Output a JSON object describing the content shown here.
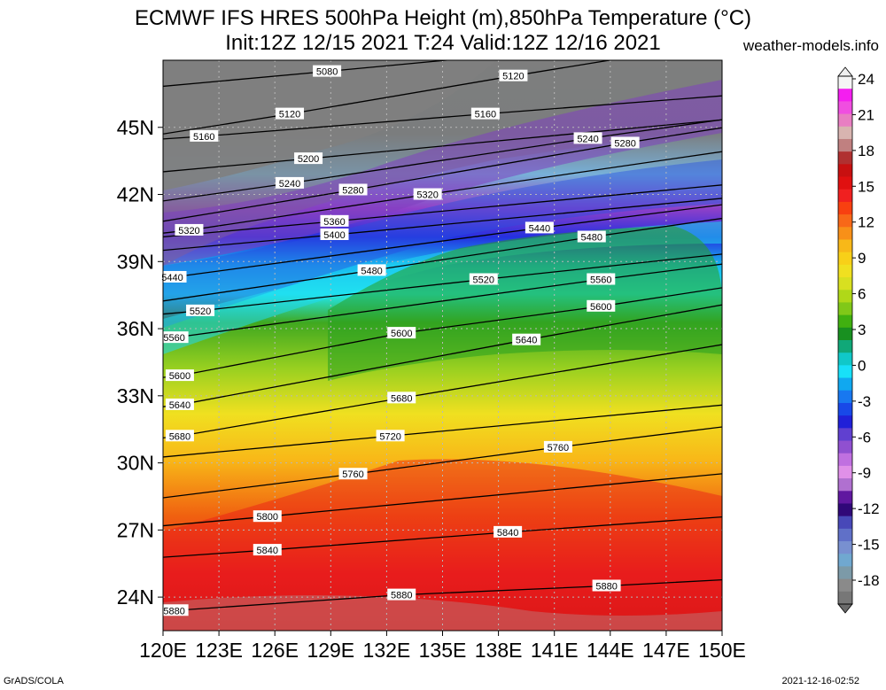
{
  "header": {
    "title_line1": "ECMWF IFS HRES 500hPa Height (m),850hPa Temperature (°C)",
    "title_line2": "Init:12Z 12/15 2021 T:24 Valid:12Z 12/16 2021",
    "site": "weather-models.info"
  },
  "footer": {
    "left": "GrADS/COLA",
    "right": "2021-12-16-02:52"
  },
  "map": {
    "lon_range": [
      120,
      150
    ],
    "lat_range": [
      22.5,
      48
    ],
    "lon_ticks": [
      "120E",
      "123E",
      "126E",
      "129E",
      "132E",
      "135E",
      "138E",
      "141E",
      "144E",
      "147E",
      "150E"
    ],
    "lat_ticks": [
      "24N",
      "27N",
      "30N",
      "33N",
      "36N",
      "39N",
      "42N",
      "45N"
    ],
    "contour_labels": [
      {
        "text": "5080",
        "lon": 128.8,
        "lat": 47.5
      },
      {
        "text": "5120",
        "lon": 138.8,
        "lat": 47.3
      },
      {
        "text": "5120",
        "lon": 126.8,
        "lat": 45.6
      },
      {
        "text": "5160",
        "lon": 137.3,
        "lat": 45.6
      },
      {
        "text": "5160",
        "lon": 122.2,
        "lat": 44.6
      },
      {
        "text": "5240",
        "lon": 142.8,
        "lat": 44.5
      },
      {
        "text": "5280",
        "lon": 144.8,
        "lat": 44.3
      },
      {
        "text": "5200",
        "lon": 127.8,
        "lat": 43.6
      },
      {
        "text": "5240",
        "lon": 126.8,
        "lat": 42.5
      },
      {
        "text": "5280",
        "lon": 130.2,
        "lat": 42.2
      },
      {
        "text": "5320",
        "lon": 134.2,
        "lat": 42.0
      },
      {
        "text": "5320",
        "lon": 121.4,
        "lat": 40.4
      },
      {
        "text": "5360",
        "lon": 129.2,
        "lat": 40.8
      },
      {
        "text": "5400",
        "lon": 129.2,
        "lat": 40.2
      },
      {
        "text": "5440",
        "lon": 140.2,
        "lat": 40.5
      },
      {
        "text": "5480",
        "lon": 143.0,
        "lat": 40.1
      },
      {
        "text": "5440",
        "lon": 120.5,
        "lat": 38.3
      },
      {
        "text": "5480",
        "lon": 131.2,
        "lat": 38.6
      },
      {
        "text": "5520",
        "lon": 137.2,
        "lat": 38.2
      },
      {
        "text": "5560",
        "lon": 143.5,
        "lat": 38.2
      },
      {
        "text": "5520",
        "lon": 122.0,
        "lat": 36.8
      },
      {
        "text": "5600",
        "lon": 143.5,
        "lat": 37.0
      },
      {
        "text": "5560",
        "lon": 120.6,
        "lat": 35.6
      },
      {
        "text": "5600",
        "lon": 132.8,
        "lat": 35.8
      },
      {
        "text": "5640",
        "lon": 139.5,
        "lat": 35.5
      },
      {
        "text": "5600",
        "lon": 120.9,
        "lat": 33.9
      },
      {
        "text": "5640",
        "lon": 120.9,
        "lat": 32.6
      },
      {
        "text": "5680",
        "lon": 132.8,
        "lat": 32.9
      },
      {
        "text": "5680",
        "lon": 120.9,
        "lat": 31.2
      },
      {
        "text": "5720",
        "lon": 132.2,
        "lat": 31.2
      },
      {
        "text": "5760",
        "lon": 141.2,
        "lat": 30.7
      },
      {
        "text": "5760",
        "lon": 130.2,
        "lat": 29.5
      },
      {
        "text": "5800",
        "lon": 125.6,
        "lat": 27.6
      },
      {
        "text": "5840",
        "lon": 138.5,
        "lat": 26.9
      },
      {
        "text": "5840",
        "lon": 125.6,
        "lat": 26.1
      },
      {
        "text": "5880",
        "lon": 132.8,
        "lat": 24.1
      },
      {
        "text": "5880",
        "lon": 143.8,
        "lat": 24.5
      },
      {
        "text": "5880",
        "lon": 120.6,
        "lat": 23.4
      }
    ]
  },
  "colorbar": {
    "labels": [
      "24",
      "21",
      "18",
      "15",
      "12",
      "9",
      "6",
      "3",
      "0",
      "-3",
      "-6",
      "-9",
      "-12",
      "-15",
      "-18"
    ],
    "colors": [
      "#f5f5f5",
      "#f41ef0",
      "#f04ee0",
      "#e87ec2",
      "#d8b4b0",
      "#c08080",
      "#b03030",
      "#c81010",
      "#e01010",
      "#f02020",
      "#f84010",
      "#f86818",
      "#f89018",
      "#f8b818",
      "#f8d018",
      "#f0e020",
      "#d8e020",
      "#b0d818",
      "#80c818",
      "#40b010",
      "#189020",
      "#10a878",
      "#10c8c8",
      "#18e0f8",
      "#10a8f0",
      "#1878f0",
      "#1848e8",
      "#2020d8",
      "#6040d0",
      "#9050d0",
      "#c070e0",
      "#e090e8",
      "#b070d0",
      "#6018a0",
      "#300878",
      "#4848b8",
      "#6070c8",
      "#7890d0",
      "#70a8d0",
      "#7c9aa8",
      "#8a8a8a",
      "#777777"
    ]
  }
}
